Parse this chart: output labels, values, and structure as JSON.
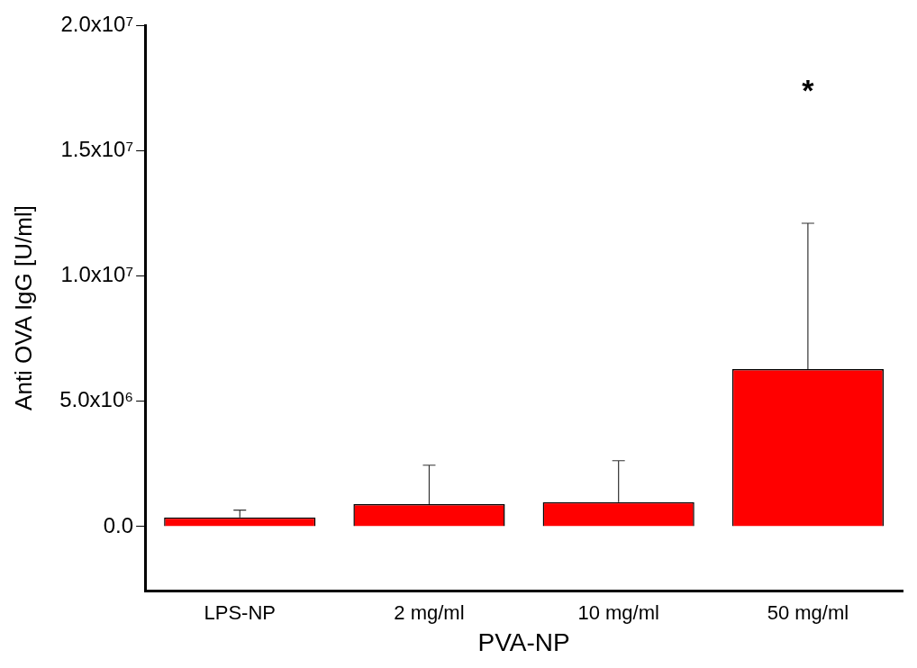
{
  "chart_data": {
    "type": "bar",
    "xlabel": "PVA-NP",
    "ylabel": "Anti OVA IgG [U/ml]",
    "categories": [
      "LPS-NP",
      "2 mg/ml",
      "10 mg/ml",
      "50 mg/ml"
    ],
    "values": [
      370000,
      900000,
      980000,
      6280000
    ],
    "errors": [
      [
        370000,
        660000
      ],
      [
        900000,
        2450000
      ],
      [
        980000,
        2630000
      ],
      [
        6280000,
        12100000
      ]
    ],
    "color": "#ff0000",
    "ylim": [
      -2550000,
      20000000
    ],
    "yticks": [
      {
        "value": 0,
        "label": "0.0"
      },
      {
        "value": 5000000,
        "label": "5.0x10⁶"
      },
      {
        "value": 10000000,
        "label": "1.0x10⁷"
      },
      {
        "value": 15000000,
        "label": "1.5x10⁷"
      },
      {
        "value": 20000000,
        "label": "2.0x10⁷"
      }
    ],
    "annotations": [
      "*"
    ],
    "grid": false,
    "legend": false
  }
}
